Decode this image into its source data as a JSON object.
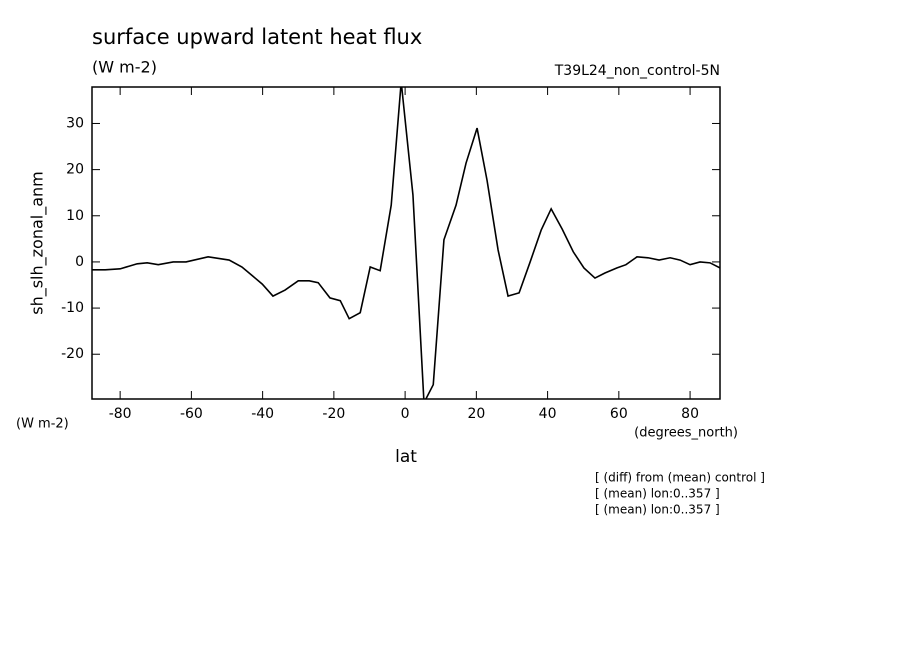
{
  "chart_data": {
    "type": "line",
    "title": "surface upward latent heat flux",
    "subtitle": "(W m-2)",
    "dataset": "T39L24_non_control-5N",
    "ylabel": "sh_slh_zonal_anm",
    "yunits": "(W m-2)",
    "xunits": "(degrees_north)",
    "xlabel": "lat",
    "notes": [
      "[ (diff) from (mean) control ]",
      "[ (mean) lon:0..357 ]",
      "[ (mean) lon:0..357 ]"
    ],
    "xlim": [
      -87.9,
      88.4
    ],
    "ylim": [
      -29.7,
      37.9
    ],
    "xticks": [
      -80,
      -60,
      -40,
      -20,
      0,
      20,
      40,
      60,
      80
    ],
    "yticks": [
      -20,
      -10,
      0,
      10,
      20,
      30
    ],
    "color": "#000000",
    "x": [
      -87.9,
      -84.2,
      -80,
      -75.2,
      -72.4,
      -69.3,
      -65.1,
      -61.5,
      -55.3,
      -49.4,
      -45.8,
      -40.1,
      -37.1,
      -33.7,
      -30.0,
      -26.9,
      -24.4,
      -21.1,
      -18.2,
      -15.7,
      -12.6,
      -9.8,
      -7.0,
      -3.9,
      -1.1,
      2.2,
      5.3,
      7.9,
      10.9,
      14.3,
      17.1,
      20.2,
      23.0,
      26.1,
      28.9,
      32.0,
      35.1,
      38.2,
      41.0,
      44.1,
      47.2,
      50.2,
      53.3,
      56.1,
      59.5,
      62.0,
      65.1,
      68.2,
      71.3,
      74.4,
      77.2,
      80,
      82.8,
      85.6,
      88.4
    ],
    "values": [
      -1.7,
      -1.7,
      -1.5,
      -0.4,
      -0.2,
      -0.6,
      0,
      0,
      1.1,
      0.4,
      -1.1,
      -4.8,
      -7.4,
      -6.1,
      -4.1,
      -4.1,
      -4.5,
      -7.8,
      -8.4,
      -12.3,
      -11.0,
      -1.1,
      -1.9,
      12.3,
      39,
      14.5,
      -30.5,
      -26.6,
      4.8,
      12.3,
      21.4,
      29.0,
      17.7,
      2.6,
      -7.4,
      -6.7,
      0,
      6.9,
      11.5,
      7.1,
      2.2,
      -1.3,
      -3.5,
      -2.4,
      -1.3,
      -0.6,
      1.1,
      0.9,
      0.4,
      0.9,
      0.4,
      -0.6,
      0,
      -0.2,
      -1.3
    ]
  }
}
